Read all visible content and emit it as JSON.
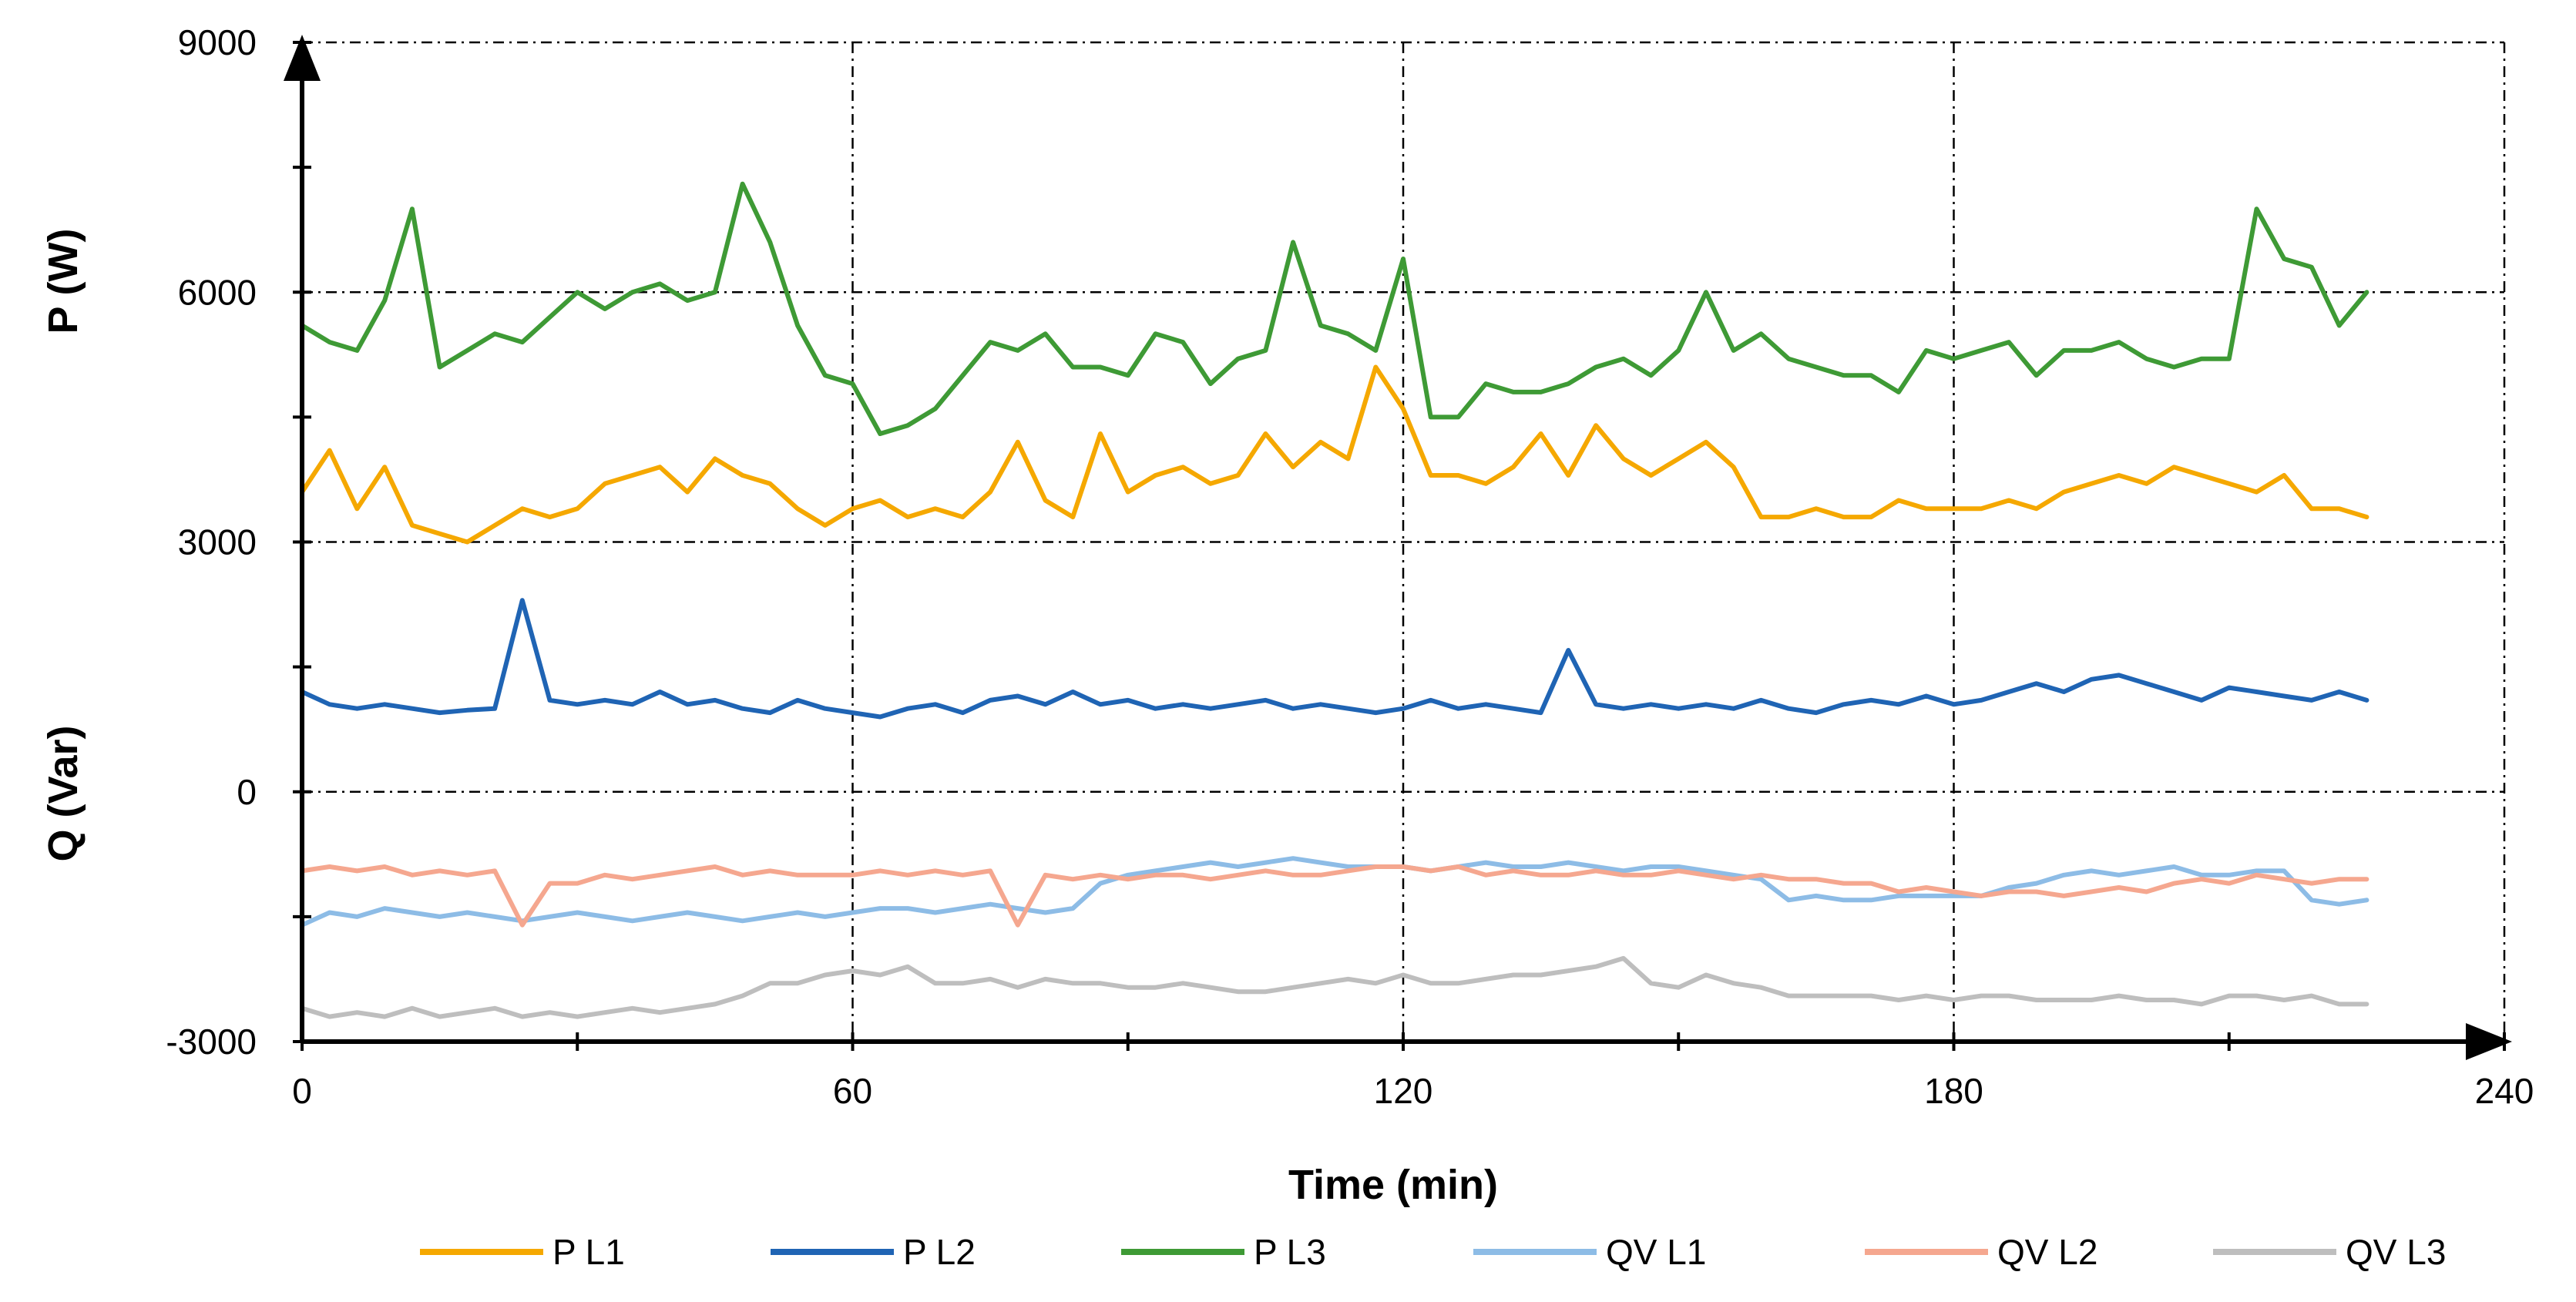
{
  "chart_data": {
    "type": "line",
    "xlabel": "Time (min)",
    "ylabel_top": "P (W)",
    "ylabel_bottom": "Q (Var)",
    "xlim": [
      0,
      240
    ],
    "ylim": [
      -3000,
      9000
    ],
    "x_ticks": [
      0,
      60,
      120,
      180,
      240
    ],
    "y_ticks": [
      -3000,
      0,
      3000,
      6000,
      9000
    ],
    "x_tick_labels": [
      "0",
      "60",
      "120",
      "180",
      "240"
    ],
    "y_tick_labels": [
      "-3000",
      "0",
      "3000",
      "6000",
      "9000"
    ],
    "grid": true,
    "legend_position": "bottom",
    "series": [
      {
        "name": "P L1",
        "color": "#F5A800",
        "x": [
          0,
          3,
          6,
          9,
          12,
          15,
          18,
          21,
          24,
          27,
          30,
          33,
          36,
          39,
          42,
          45,
          48,
          51,
          54,
          57,
          60,
          63,
          66,
          69,
          72,
          75,
          78,
          81,
          84,
          87,
          90,
          93,
          96,
          99,
          102,
          105,
          108,
          111,
          114,
          117,
          120,
          123,
          126,
          129,
          132,
          135,
          138,
          141,
          144,
          147,
          150,
          153,
          156,
          159,
          162,
          165,
          168,
          171,
          174,
          177,
          180,
          183,
          186,
          189,
          192,
          195,
          198,
          201,
          204,
          207,
          210,
          213,
          216,
          219,
          222,
          225
        ],
        "values": [
          3600,
          4100,
          3400,
          3900,
          3200,
          3100,
          3000,
          3200,
          3400,
          3300,
          3400,
          3700,
          3800,
          3900,
          3600,
          4000,
          3800,
          3700,
          3400,
          3200,
          3400,
          3500,
          3300,
          3400,
          3300,
          3600,
          4200,
          3500,
          3300,
          4300,
          3600,
          3800,
          3900,
          3700,
          3800,
          4300,
          3900,
          4200,
          4000,
          5100,
          4600,
          3800,
          3800,
          3700,
          3900,
          4300,
          3800,
          4400,
          4000,
          3800,
          4000,
          4200,
          3900,
          3300,
          3300,
          3400,
          3300,
          3300,
          3500,
          3400,
          3400,
          3400,
          3500,
          3400,
          3600,
          3700,
          3800,
          3700,
          3900,
          3800,
          3700,
          3600,
          3800,
          3400,
          3400,
          3300
        ]
      },
      {
        "name": "P L2",
        "color": "#1F64B4",
        "x": [
          0,
          3,
          6,
          9,
          12,
          15,
          18,
          21,
          24,
          27,
          30,
          33,
          36,
          39,
          42,
          45,
          48,
          51,
          54,
          57,
          60,
          63,
          66,
          69,
          72,
          75,
          78,
          81,
          84,
          87,
          90,
          93,
          96,
          99,
          102,
          105,
          108,
          111,
          114,
          117,
          120,
          123,
          126,
          129,
          132,
          135,
          138,
          141,
          144,
          147,
          150,
          153,
          156,
          159,
          162,
          165,
          168,
          171,
          174,
          177,
          180,
          183,
          186,
          189,
          192,
          195,
          198,
          201,
          204,
          207,
          210,
          213,
          216,
          219,
          222,
          225
        ],
        "values": [
          1200,
          1050,
          1000,
          1050,
          1000,
          950,
          980,
          1000,
          2300,
          1100,
          1050,
          1100,
          1050,
          1200,
          1050,
          1100,
          1000,
          950,
          1100,
          1000,
          950,
          900,
          1000,
          1050,
          950,
          1100,
          1150,
          1050,
          1200,
          1050,
          1100,
          1000,
          1050,
          1000,
          1050,
          1100,
          1000,
          1050,
          1000,
          950,
          1000,
          1100,
          1000,
          1050,
          1000,
          950,
          1700,
          1050,
          1000,
          1050,
          1000,
          1050,
          1000,
          1100,
          1000,
          950,
          1050,
          1100,
          1050,
          1150,
          1050,
          1100,
          1200,
          1300,
          1200,
          1350,
          1400,
          1300,
          1200,
          1100,
          1250,
          1200,
          1150,
          1100,
          1200,
          1100
        ]
      },
      {
        "name": "P L3",
        "color": "#3E9A35",
        "x": [
          0,
          3,
          6,
          9,
          12,
          15,
          18,
          21,
          24,
          27,
          30,
          33,
          36,
          39,
          42,
          45,
          48,
          51,
          54,
          57,
          60,
          63,
          66,
          69,
          72,
          75,
          78,
          81,
          84,
          87,
          90,
          93,
          96,
          99,
          102,
          105,
          108,
          111,
          114,
          117,
          120,
          123,
          126,
          129,
          132,
          135,
          138,
          141,
          144,
          147,
          150,
          153,
          156,
          159,
          162,
          165,
          168,
          171,
          174,
          177,
          180,
          183,
          186,
          189,
          192,
          195,
          198,
          201,
          204,
          207,
          210,
          213,
          216,
          219,
          222,
          225
        ],
        "values": [
          5600,
          5400,
          5300,
          5900,
          7000,
          5100,
          5300,
          5500,
          5400,
          5700,
          6000,
          5800,
          6000,
          6100,
          5900,
          6000,
          7300,
          6600,
          5600,
          5000,
          4900,
          4300,
          4400,
          4600,
          5000,
          5400,
          5300,
          5500,
          5100,
          5100,
          5000,
          5500,
          5400,
          4900,
          5200,
          5300,
          6600,
          5600,
          5500,
          5300,
          6400,
          4500,
          4500,
          4900,
          4800,
          4800,
          4900,
          5100,
          5200,
          5000,
          5300,
          6000,
          5300,
          5500,
          5200,
          5100,
          5000,
          5000,
          4800,
          5300,
          5200,
          5300,
          5400,
          5000,
          5300,
          5300,
          5400,
          5200,
          5100,
          5200,
          5200,
          7000,
          6400,
          6300,
          5600,
          6000
        ]
      },
      {
        "name": "QV L1",
        "color": "#8DBCE6",
        "x": [
          0,
          3,
          6,
          9,
          12,
          15,
          18,
          21,
          24,
          27,
          30,
          33,
          36,
          39,
          42,
          45,
          48,
          51,
          54,
          57,
          60,
          63,
          66,
          69,
          72,
          75,
          78,
          81,
          84,
          87,
          90,
          93,
          96,
          99,
          102,
          105,
          108,
          111,
          114,
          117,
          120,
          123,
          126,
          129,
          132,
          135,
          138,
          141,
          144,
          147,
          150,
          153,
          156,
          159,
          162,
          165,
          168,
          171,
          174,
          177,
          180,
          183,
          186,
          189,
          192,
          195,
          198,
          201,
          204,
          207,
          210,
          213,
          216,
          219,
          222,
          225
        ],
        "values": [
          -1600,
          -1450,
          -1500,
          -1400,
          -1450,
          -1500,
          -1450,
          -1500,
          -1550,
          -1500,
          -1450,
          -1500,
          -1550,
          -1500,
          -1450,
          -1500,
          -1550,
          -1500,
          -1450,
          -1500,
          -1450,
          -1400,
          -1400,
          -1450,
          -1400,
          -1350,
          -1400,
          -1450,
          -1400,
          -1100,
          -1000,
          -950,
          -900,
          -850,
          -900,
          -850,
          -800,
          -850,
          -900,
          -900,
          -900,
          -950,
          -900,
          -850,
          -900,
          -900,
          -850,
          -900,
          -950,
          -900,
          -900,
          -950,
          -1000,
          -1050,
          -1300,
          -1250,
          -1300,
          -1300,
          -1250,
          -1250,
          -1250,
          -1250,
          -1150,
          -1100,
          -1000,
          -950,
          -1000,
          -950,
          -900,
          -1000,
          -1000,
          -950,
          -950,
          -1300,
          -1350,
          -1300
        ]
      },
      {
        "name": "QV L2",
        "color": "#F5A78F",
        "x": [
          0,
          3,
          6,
          9,
          12,
          15,
          18,
          21,
          24,
          27,
          30,
          33,
          36,
          39,
          42,
          45,
          48,
          51,
          54,
          57,
          60,
          63,
          66,
          69,
          72,
          75,
          78,
          81,
          84,
          87,
          90,
          93,
          96,
          99,
          102,
          105,
          108,
          111,
          114,
          117,
          120,
          123,
          126,
          129,
          132,
          135,
          138,
          141,
          144,
          147,
          150,
          153,
          156,
          159,
          162,
          165,
          168,
          171,
          174,
          177,
          180,
          183,
          186,
          189,
          192,
          195,
          198,
          201,
          204,
          207,
          210,
          213,
          216,
          219,
          222,
          225
        ],
        "values": [
          -950,
          -900,
          -950,
          -900,
          -1000,
          -950,
          -1000,
          -950,
          -1600,
          -1100,
          -1100,
          -1000,
          -1050,
          -1000,
          -950,
          -900,
          -1000,
          -950,
          -1000,
          -1000,
          -1000,
          -950,
          -1000,
          -950,
          -1000,
          -950,
          -1600,
          -1000,
          -1050,
          -1000,
          -1050,
          -1000,
          -1000,
          -1050,
          -1000,
          -950,
          -1000,
          -1000,
          -950,
          -900,
          -900,
          -950,
          -900,
          -1000,
          -950,
          -1000,
          -1000,
          -950,
          -1000,
          -1000,
          -950,
          -1000,
          -1050,
          -1000,
          -1050,
          -1050,
          -1100,
          -1100,
          -1200,
          -1150,
          -1200,
          -1250,
          -1200,
          -1200,
          -1250,
          -1200,
          -1150,
          -1200,
          -1100,
          -1050,
          -1100,
          -1000,
          -1050,
          -1100,
          -1050,
          -1050
        ]
      },
      {
        "name": "QV L3",
        "color": "#BEBEBE",
        "x": [
          0,
          3,
          6,
          9,
          12,
          15,
          18,
          21,
          24,
          27,
          30,
          33,
          36,
          39,
          42,
          45,
          48,
          51,
          54,
          57,
          60,
          63,
          66,
          69,
          72,
          75,
          78,
          81,
          84,
          87,
          90,
          93,
          96,
          99,
          102,
          105,
          108,
          111,
          114,
          117,
          120,
          123,
          126,
          129,
          132,
          135,
          138,
          141,
          144,
          147,
          150,
          153,
          156,
          159,
          162,
          165,
          168,
          171,
          174,
          177,
          180,
          183,
          186,
          189,
          192,
          195,
          198,
          201,
          204,
          207,
          210,
          213,
          216,
          219,
          222,
          225
        ],
        "values": [
          -2600,
          -2700,
          -2650,
          -2700,
          -2600,
          -2700,
          -2650,
          -2600,
          -2700,
          -2650,
          -2700,
          -2650,
          -2600,
          -2650,
          -2600,
          -2550,
          -2450,
          -2300,
          -2300,
          -2200,
          -2150,
          -2200,
          -2100,
          -2300,
          -2300,
          -2250,
          -2350,
          -2250,
          -2300,
          -2300,
          -2350,
          -2350,
          -2300,
          -2350,
          -2400,
          -2400,
          -2350,
          -2300,
          -2250,
          -2300,
          -2200,
          -2300,
          -2300,
          -2250,
          -2200,
          -2200,
          -2150,
          -2100,
          -2000,
          -2300,
          -2350,
          -2200,
          -2300,
          -2350,
          -2450,
          -2450,
          -2450,
          -2450,
          -2500,
          -2450,
          -2500,
          -2450,
          -2450,
          -2500,
          -2500,
          -2500,
          -2450,
          -2500,
          -2500,
          -2550,
          -2450,
          -2450,
          -2500,
          -2450,
          -2550,
          -2550
        ]
      }
    ]
  }
}
